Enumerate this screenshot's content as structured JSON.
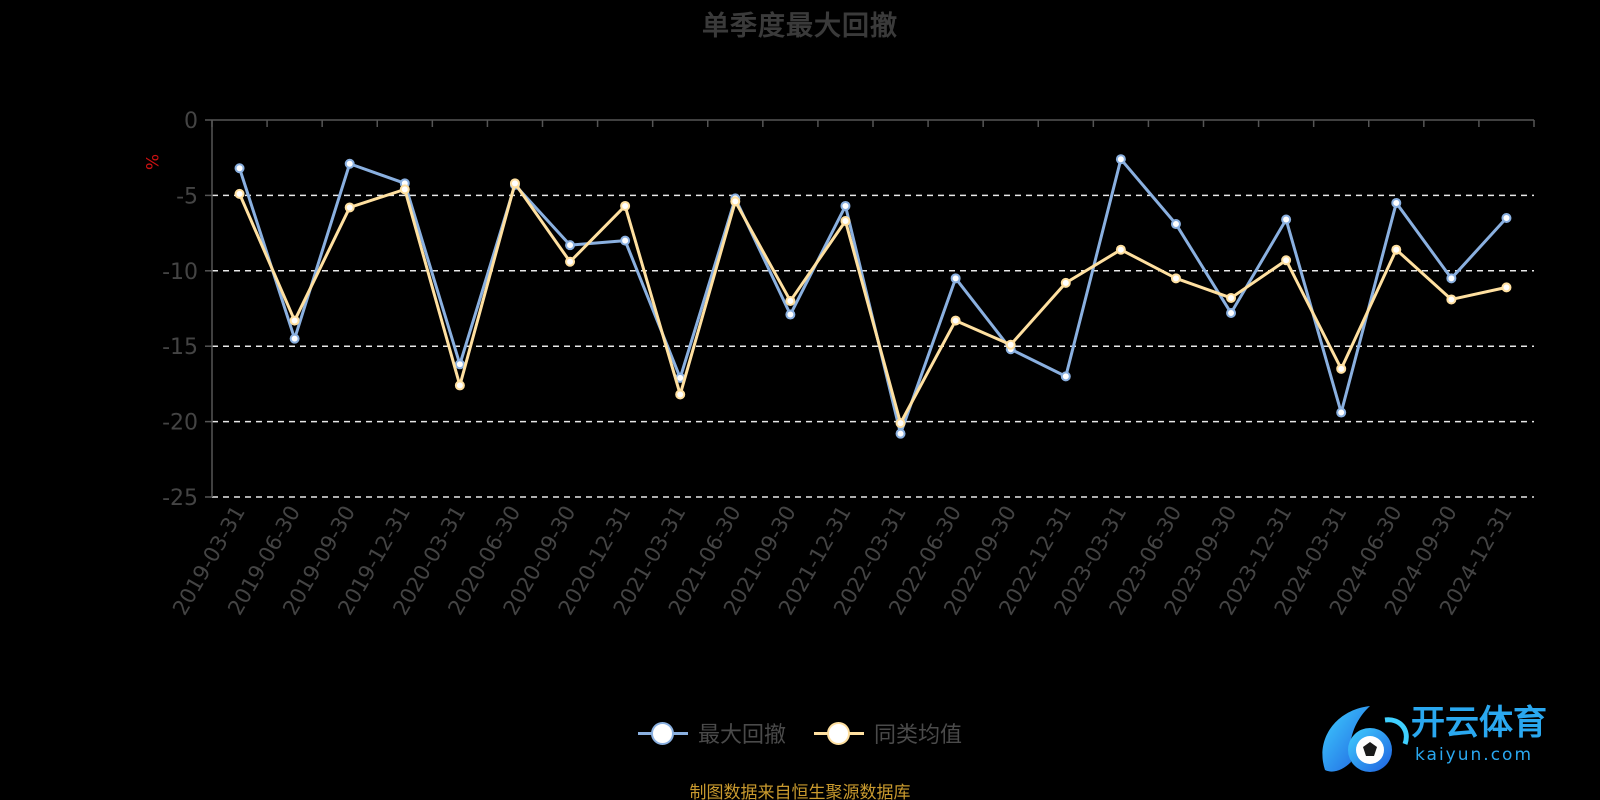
{
  "title": "单季度最大回撤",
  "source_note": "制图数据来自恒生聚源数据库",
  "legend": {
    "items": [
      {
        "label": "最大回撤",
        "color": "#8ab0e0"
      },
      {
        "label": "同类均值",
        "color": "#ffe0a0"
      }
    ]
  },
  "logo": {
    "name": "开云体育",
    "url_text": "kaiyun.com"
  },
  "chart_data": {
    "type": "line",
    "title": "单季度最大回撤",
    "ylabel": "%",
    "ylabel_color": "#cc1111",
    "ylim": [
      -25,
      0
    ],
    "yticks": [
      0,
      -5,
      -10,
      -15,
      -20,
      -25
    ],
    "grid": "dashed horizontal",
    "legend_position": "bottom-center",
    "categories": [
      "2019-03-31",
      "2019-06-30",
      "2019-09-30",
      "2019-12-31",
      "2020-03-31",
      "2020-06-30",
      "2020-09-30",
      "2020-12-31",
      "2021-03-31",
      "2021-06-30",
      "2021-09-30",
      "2021-12-31",
      "2022-03-31",
      "2022-06-30",
      "2022-09-30",
      "2022-12-31",
      "2023-03-31",
      "2023-06-30",
      "2023-09-30",
      "2023-12-31",
      "2024-03-31",
      "2024-06-30",
      "2024-09-30",
      "2024-12-31"
    ],
    "series": [
      {
        "name": "最大回撤",
        "color": "#8ab0e0",
        "values": [
          -3.2,
          -14.5,
          -2.9,
          -4.2,
          -16.2,
          -4.3,
          -8.3,
          -8.0,
          -17.1,
          -5.2,
          -12.9,
          -5.7,
          -20.8,
          -10.5,
          -15.2,
          -17.0,
          -2.6,
          -6.9,
          -12.8,
          -6.6,
          -19.4,
          -5.5,
          -10.5,
          -6.5
        ]
      },
      {
        "name": "同类均值",
        "color": "#ffe0a0",
        "values": [
          -4.9,
          -13.3,
          -5.8,
          -4.6,
          -17.6,
          -4.2,
          -9.4,
          -5.7,
          -18.2,
          -5.4,
          -12.0,
          -6.7,
          -20.1,
          -13.3,
          -14.9,
          -10.8,
          -8.6,
          -10.5,
          -11.8,
          -9.3,
          -16.5,
          -8.6,
          -11.9,
          -11.1
        ]
      }
    ]
  }
}
